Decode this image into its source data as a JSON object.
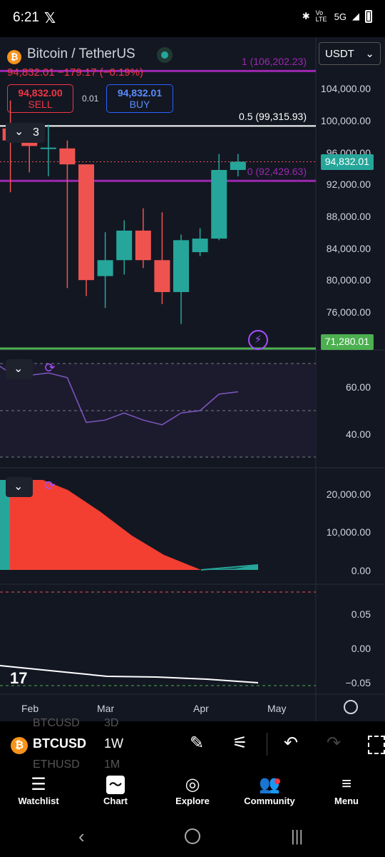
{
  "status": {
    "time": "6:21",
    "x_logo": "𝕏",
    "network": "5G",
    "volte": "Vo LTE"
  },
  "header": {
    "title": "Bitcoin / TetherUS",
    "price_change": "94,832.01  −179.17 (−0.19%)",
    "quote_currency": "USDT",
    "sell": {
      "price": "94,832.00",
      "label": "SELL"
    },
    "buy": {
      "price": "94,832.01",
      "label": "BUY"
    },
    "spread": "0.01",
    "indicators_count": "3"
  },
  "price_axis": {
    "labels": [
      "104,000.00",
      "100,000.00",
      "96,000.00",
      "92,000.00",
      "88,000.00",
      "84,000.00",
      "80,000.00",
      "76,000.00"
    ],
    "current_price_tag": "94,832.01",
    "low_tag": "71,280.01"
  },
  "fib_levels": {
    "level_1": "1 (106,202.23)",
    "level_05": "0.5 (99,315.93)",
    "level_0": "0 (92,429.63)"
  },
  "rsi_axis": [
    "60.00",
    "40.00"
  ],
  "macd_axis": [
    "20,000.00",
    "10,000.00",
    "0.00"
  ],
  "osc_axis": [
    "0.05",
    "0.00",
    "−0.05"
  ],
  "time_axis": [
    "Feb",
    "Mar",
    "Apr",
    "May"
  ],
  "colors": {
    "up": "#26a69a",
    "down": "#ef5350",
    "fib_purple": "#9c27b0",
    "accent_green": "#4caf50",
    "rsi_line": "#7e57c2"
  },
  "chart_data": {
    "type": "candlestick",
    "interval": "1W",
    "y_range": [
      71280,
      106202
    ],
    "candles": [
      {
        "o": 102000,
        "h": 103000,
        "l": 96500,
        "c": 100500
      },
      {
        "o": 99000,
        "h": 102500,
        "l": 91000,
        "c": 97500
      },
      {
        "o": 97500,
        "h": 98000,
        "l": 93500,
        "c": 96800
      },
      {
        "o": 96500,
        "h": 99500,
        "l": 93000,
        "c": 96600
      },
      {
        "o": 96500,
        "h": 97500,
        "l": 79000,
        "c": 94500
      },
      {
        "o": 94500,
        "h": 94500,
        "l": 78000,
        "c": 80000
      },
      {
        "o": 80500,
        "h": 86000,
        "l": 76500,
        "c": 82500
      },
      {
        "o": 82500,
        "h": 87500,
        "l": 80700,
        "c": 86200
      },
      {
        "o": 86200,
        "h": 89000,
        "l": 81500,
        "c": 82500
      },
      {
        "o": 82500,
        "h": 88500,
        "l": 77000,
        "c": 78500
      },
      {
        "o": 78500,
        "h": 85700,
        "l": 74500,
        "c": 85000
      },
      {
        "o": 83500,
        "h": 86500,
        "l": 83000,
        "c": 85200
      },
      {
        "o": 85200,
        "h": 95800,
        "l": 85000,
        "c": 93800
      },
      {
        "o": 93800,
        "h": 95800,
        "l": 93000,
        "c": 94832
      }
    ],
    "rsi": [
      71,
      66,
      65,
      66,
      64,
      45,
      46,
      49,
      46,
      44,
      49,
      50,
      57,
      58
    ]
  },
  "symbol_bar": {
    "symbol": "BTCUSD",
    "symbol_above": "BTCUSD",
    "symbol_below": "ETHUSD",
    "timeframe": "1W",
    "timeframe_above": "3D",
    "timeframe_below": "1M"
  },
  "tabs": [
    {
      "label": "Watchlist",
      "icon": "watchlist-icon"
    },
    {
      "label": "Chart",
      "icon": "chart-icon"
    },
    {
      "label": "Explore",
      "icon": "compass-icon"
    },
    {
      "label": "Community",
      "icon": "community-icon"
    },
    {
      "label": "Menu",
      "icon": "menu-icon"
    }
  ]
}
